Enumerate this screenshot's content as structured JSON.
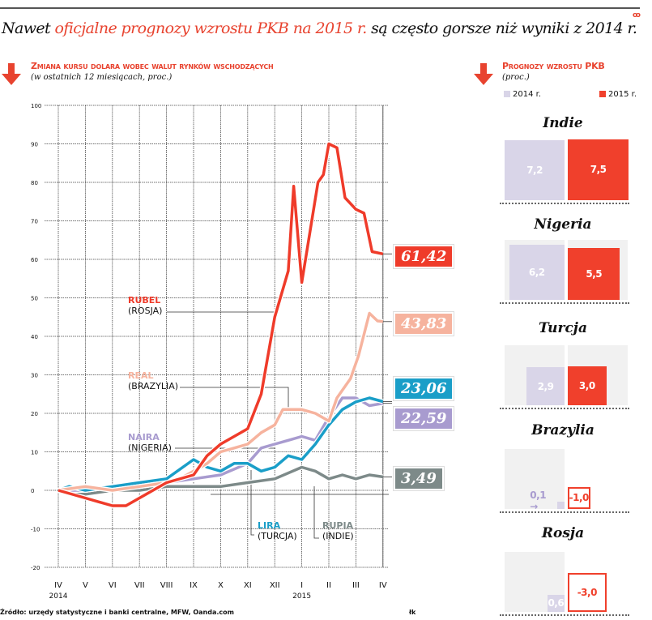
{
  "header": {
    "title_pre": "Nawet ",
    "title_red": "oficjalne prognozy wzrostu PKB na 2015 r.",
    "title_post": " są często gorsze   niż wyniki z 2014 r.",
    "logo": "ꝏ"
  },
  "colors": {
    "accent": "#e8432f",
    "rubel": "#ef3b2a",
    "real": "#f6b39e",
    "lira": "#1a9ec8",
    "naira": "#a89bcf",
    "rupia": "#7d8a89",
    "y2014": "#d9d5e8",
    "y2015": "#f0402c"
  },
  "chart_data": [
    {
      "type": "line",
      "title": "Zmiana kursu dolara wobec walut rynków wschodzących",
      "subtitle": "(w ostatnich 12 miesiącach, proc.)",
      "xlabel": "",
      "ylabel": "",
      "x_ticks": [
        "IV",
        "V",
        "VI",
        "VII",
        "VIII",
        "IX",
        "X",
        "XI",
        "XII",
        "I",
        "II",
        "III",
        "IV"
      ],
      "x_years": [
        {
          "label": "2014",
          "at": 0
        },
        {
          "label": "2015",
          "at": 9
        }
      ],
      "y_ticks": [
        100,
        90,
        80,
        70,
        60,
        50,
        40,
        30,
        20,
        10,
        0,
        -10,
        -20
      ],
      "ylim": [
        -20,
        100
      ],
      "xlim": [
        0,
        12
      ],
      "grid": true,
      "series": [
        {
          "key": "rupia",
          "name": "RUPIA",
          "country": "(INDIE)",
          "last": "3,49",
          "x": [
            0,
            1,
            2,
            3,
            4,
            5,
            6,
            7,
            8,
            9,
            9.5,
            10,
            10.5,
            11,
            11.5,
            12
          ],
          "y": [
            0,
            -1,
            0,
            0,
            1,
            1,
            1,
            2,
            3,
            6,
            5,
            3,
            4,
            3,
            4,
            3.49
          ]
        },
        {
          "key": "naira",
          "name": "NAIRA",
          "country": "(NIGERIA)",
          "last": "22,59",
          "x": [
            0,
            1,
            2,
            3,
            4,
            5,
            6,
            7,
            7.5,
            8,
            8.5,
            9,
            9.5,
            10,
            10.5,
            11,
            11.5,
            12
          ],
          "y": [
            0,
            0,
            1,
            1,
            2,
            3,
            4,
            7,
            11,
            12,
            13,
            14,
            13,
            19,
            24,
            24,
            22,
            22.59
          ]
        },
        {
          "key": "lira",
          "name": "LIRA",
          "country": "(TURCJA)",
          "last": "23,06",
          "x": [
            0,
            0.4,
            1,
            2,
            3,
            4,
            5,
            5.5,
            6,
            6.5,
            7,
            7.5,
            8,
            8.5,
            9,
            9.5,
            10,
            10.5,
            11,
            11.5,
            12
          ],
          "y": [
            0,
            1,
            0,
            1,
            2,
            3,
            8,
            6,
            5,
            7,
            7,
            5,
            6,
            9,
            8,
            12,
            17,
            21,
            23,
            24,
            23.06
          ]
        },
        {
          "key": "real",
          "name": "REAL",
          "country": "(BRAZYLIA)",
          "last": "43,83",
          "x": [
            0,
            1,
            2,
            3,
            4,
            4.5,
            5,
            5.5,
            6,
            6.5,
            7,
            7.5,
            8,
            8.3,
            9,
            9.5,
            10,
            10.3,
            10.8,
            11.1,
            11.5,
            11.8,
            12
          ],
          "y": [
            0,
            1,
            0,
            1,
            2,
            3,
            5,
            7,
            10,
            11,
            12,
            15,
            17,
            21,
            21,
            20,
            18,
            24,
            29,
            35,
            46,
            44,
            43.83
          ]
        },
        {
          "key": "rubel",
          "name": "RUBEL",
          "country": "(ROSJA)",
          "last": "61,42",
          "x": [
            0,
            1,
            1.5,
            2,
            2.5,
            3,
            3.5,
            4,
            5,
            5.5,
            6,
            7,
            7.5,
            8,
            8.5,
            8.7,
            9,
            9.3,
            9.6,
            9.8,
            10,
            10.3,
            10.6,
            11,
            11.3,
            11.6,
            12
          ],
          "y": [
            0,
            -2,
            -3,
            -4,
            -4,
            -2,
            0,
            2,
            4,
            9,
            12,
            16,
            25,
            45,
            57,
            79,
            54,
            67,
            80,
            82,
            90,
            89,
            76,
            73,
            72,
            62,
            61.42
          ]
        }
      ]
    },
    {
      "type": "bar",
      "title": "Prognozy wzrostu PKB",
      "subtitle": "(proc.)",
      "legend": [
        "2014 r.",
        "2015 r."
      ],
      "categories": [
        "Indie",
        "Nigeria",
        "Turcja",
        "Brazylia",
        "Rosja"
      ],
      "series": [
        {
          "name": "2014 r.",
          "values": [
            7.2,
            6.2,
            2.9,
            0.1,
            0.6
          ],
          "labels": [
            "7,2",
            "6,2",
            "2,9",
            "0,1",
            "0,6"
          ]
        },
        {
          "name": "2015 r.",
          "values": [
            7.5,
            5.5,
            3.0,
            -1.0,
            -3.0
          ],
          "labels": [
            "7,5",
            "5,5",
            "3,0",
            "-1,0",
            "-3,0"
          ]
        }
      ]
    }
  ],
  "footer": {
    "source": "Źródło: urzędy statystyczne i banki centralne, MFW, Oanda.com",
    "author": "łk"
  }
}
